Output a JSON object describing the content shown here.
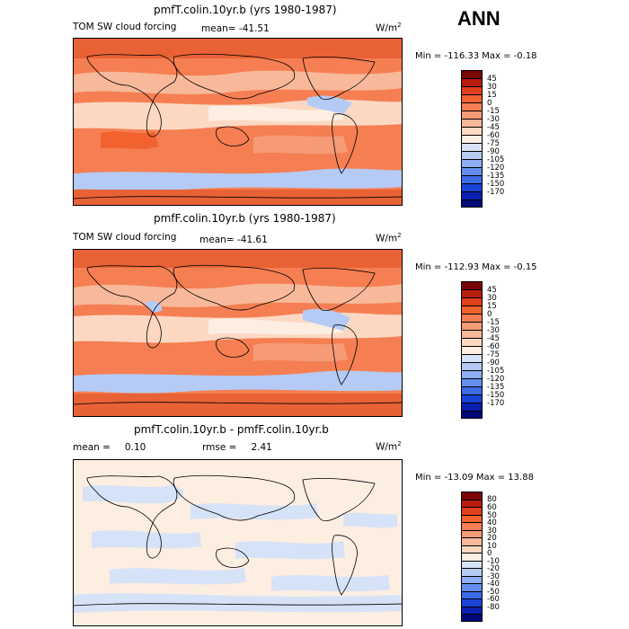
{
  "season": "ANN",
  "units": "W/m",
  "units_sup": "2",
  "panels": [
    {
      "title": "pmfT.colin.10yr.b (yrs 1980-1987)",
      "left_label": "TOM SW cloud forcing",
      "mean_label": "mean= -41.51",
      "minmax": "Min = -116.33 Max =  -0.18",
      "levels": [
        "45",
        "30",
        "15",
        "0",
        "-15",
        "-30",
        "-45",
        "-60",
        "-75",
        "-90",
        "-105",
        "-120",
        "-135",
        "-150",
        "-170"
      ],
      "colors": [
        "#7a0403",
        "#b81d0c",
        "#e0401a",
        "#f2622f",
        "#f57f52",
        "#f59b76",
        "#f8b89a",
        "#fcd8c3",
        "#fdeee2",
        "#d6e2f7",
        "#b5cbf5",
        "#8daef2",
        "#648ef0",
        "#3c6be6",
        "#1a44d6",
        "#0a20b0",
        "#00087a"
      ]
    },
    {
      "title": "pmfF.colin.10yr.b (yrs 1980-1987)",
      "left_label": "TOM SW cloud forcing",
      "mean_label": "mean= -41.61",
      "minmax": "Min = -112.93 Max =  -0.15",
      "levels": [
        "45",
        "30",
        "15",
        "0",
        "-15",
        "-30",
        "-45",
        "-60",
        "-75",
        "-90",
        "-105",
        "-120",
        "-135",
        "-150",
        "-170"
      ],
      "colors": [
        "#7a0403",
        "#b81d0c",
        "#e0401a",
        "#f2622f",
        "#f57f52",
        "#f59b76",
        "#f8b89a",
        "#fcd8c3",
        "#fdeee2",
        "#d6e2f7",
        "#b5cbf5",
        "#8daef2",
        "#648ef0",
        "#3c6be6",
        "#1a44d6",
        "#0a20b0",
        "#00087a"
      ]
    },
    {
      "title": "pmfT.colin.10yr.b - pmfF.colin.10yr.b",
      "mean_prefix": "mean =",
      "mean_value": "0.10",
      "rmse_prefix": "rmse =",
      "rmse_value": "2.41",
      "minmax": "Min = -13.09 Max =  13.88",
      "levels": [
        "80",
        "60",
        "50",
        "40",
        "30",
        "20",
        "10",
        "0",
        "-10",
        "-20",
        "-30",
        "-40",
        "-50",
        "-60",
        "-80"
      ],
      "colors": [
        "#7a0403",
        "#b81d0c",
        "#e0401a",
        "#f2622f",
        "#f57f52",
        "#f59b76",
        "#f8b89a",
        "#fcd8c3",
        "#fdeee2",
        "#d6e2f7",
        "#b5cbf5",
        "#8daef2",
        "#648ef0",
        "#3c6be6",
        "#1a44d6",
        "#0a20b0",
        "#00087a"
      ]
    }
  ]
}
